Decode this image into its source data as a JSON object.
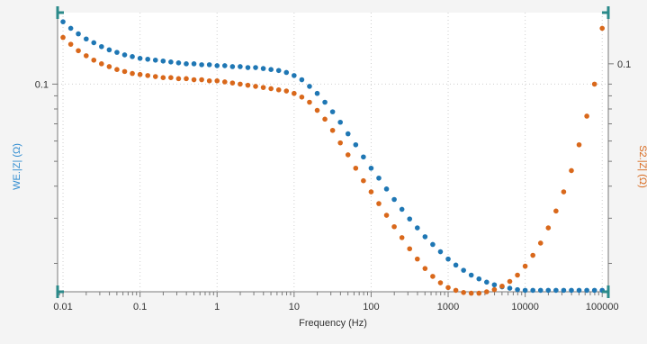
{
  "chart_data": {
    "type": "scatter",
    "xlabel": "Frequency (Hz)",
    "ylabel_left": "WE.|Z| (Ω)",
    "ylabel_right": "S2.|Z| (Ω)",
    "x_scale": "log",
    "y_scale": "log",
    "xlim": [
      0.0085,
      120000
    ],
    "ylim": [
      0.0155,
      0.19
    ],
    "x_ticks": [
      0.01,
      0.1,
      1,
      10,
      100,
      1000,
      10000,
      100000
    ],
    "x_tick_labels": [
      "0.01",
      "0.1",
      "1",
      "10",
      "100",
      "1000",
      "10000",
      "100000"
    ],
    "y_tick_left": {
      "value": 0.1,
      "label": "0.1"
    },
    "y_tick_right": {
      "value": 0.12,
      "label": "0.1"
    },
    "grid": true,
    "series": [
      {
        "color": "#1f77b4",
        "x": [
          0.01,
          0.0126,
          0.0158,
          0.02,
          0.0251,
          0.0316,
          0.0398,
          0.0501,
          0.0631,
          0.0794,
          0.1,
          0.1259,
          0.1585,
          0.1995,
          0.2512,
          0.3162,
          0.3981,
          0.5012,
          0.631,
          0.7943,
          1,
          1.259,
          1.585,
          1.995,
          2.512,
          3.162,
          3.981,
          5.012,
          6.31,
          7.943,
          10,
          12.59,
          15.85,
          19.95,
          25.12,
          31.62,
          39.81,
          50.12,
          63.1,
          79.43,
          100,
          125.9,
          158.5,
          199.5,
          251.2,
          316.2,
          398.1,
          501.2,
          631,
          794.3,
          1000,
          1259,
          1585,
          1995,
          2512,
          3162,
          3981,
          5012,
          6310,
          7943,
          10000,
          12590,
          15850,
          19950,
          25120,
          31620,
          39810,
          50120,
          63100,
          79430,
          100000
        ],
        "y": [
          0.175,
          0.165,
          0.157,
          0.15,
          0.145,
          0.14,
          0.136,
          0.133,
          0.13,
          0.128,
          0.126,
          0.125,
          0.124,
          0.123,
          0.122,
          0.121,
          0.12,
          0.12,
          0.119,
          0.119,
          0.118,
          0.118,
          0.117,
          0.117,
          0.116,
          0.116,
          0.115,
          0.114,
          0.113,
          0.111,
          0.108,
          0.104,
          0.098,
          0.092,
          0.085,
          0.078,
          0.071,
          0.064,
          0.058,
          0.052,
          0.047,
          0.043,
          0.039,
          0.0355,
          0.0325,
          0.0298,
          0.0275,
          0.0254,
          0.0237,
          0.0222,
          0.0208,
          0.0197,
          0.0188,
          0.018,
          0.0174,
          0.0169,
          0.0165,
          0.0162,
          0.016,
          0.0158,
          0.0157,
          0.0157,
          0.0157,
          0.0157,
          0.0157,
          0.0157,
          0.0157,
          0.0157,
          0.0157,
          0.0157,
          0.0157
        ]
      },
      {
        "color": "#d9681b",
        "x": [
          0.01,
          0.0126,
          0.0158,
          0.02,
          0.0251,
          0.0316,
          0.0398,
          0.0501,
          0.0631,
          0.0794,
          0.1,
          0.1259,
          0.1585,
          0.1995,
          0.2512,
          0.3162,
          0.3981,
          0.5012,
          0.631,
          0.7943,
          1,
          1.259,
          1.585,
          1.995,
          2.512,
          3.162,
          3.981,
          5.012,
          6.31,
          7.943,
          10,
          12.59,
          15.85,
          19.95,
          25.12,
          31.62,
          39.81,
          50.12,
          63.1,
          79.43,
          100,
          125.9,
          158.5,
          199.5,
          251.2,
          316.2,
          398.1,
          501.2,
          631,
          794.3,
          1000,
          1259,
          1585,
          1995,
          2512,
          3162,
          3981,
          5012,
          6310,
          7943,
          10000,
          12590,
          15850,
          19950,
          25120,
          31620,
          39810,
          50120,
          63100,
          79430,
          100000
        ],
        "y": [
          0.152,
          0.143,
          0.135,
          0.129,
          0.124,
          0.12,
          0.117,
          0.114,
          0.112,
          0.11,
          0.109,
          0.108,
          0.107,
          0.106,
          0.106,
          0.105,
          0.105,
          0.104,
          0.104,
          0.103,
          0.103,
          0.102,
          0.101,
          0.1,
          0.099,
          0.098,
          0.097,
          0.096,
          0.095,
          0.094,
          0.092,
          0.089,
          0.085,
          0.079,
          0.073,
          0.066,
          0.059,
          0.053,
          0.047,
          0.042,
          0.038,
          0.0342,
          0.0308,
          0.0278,
          0.0252,
          0.0228,
          0.0208,
          0.0191,
          0.0178,
          0.0168,
          0.0161,
          0.0157,
          0.0154,
          0.0153,
          0.0153,
          0.0155,
          0.0158,
          0.0163,
          0.017,
          0.018,
          0.0195,
          0.0215,
          0.024,
          0.0275,
          0.032,
          0.038,
          0.046,
          0.058,
          0.075,
          0.1,
          0.165
        ]
      }
    ]
  }
}
